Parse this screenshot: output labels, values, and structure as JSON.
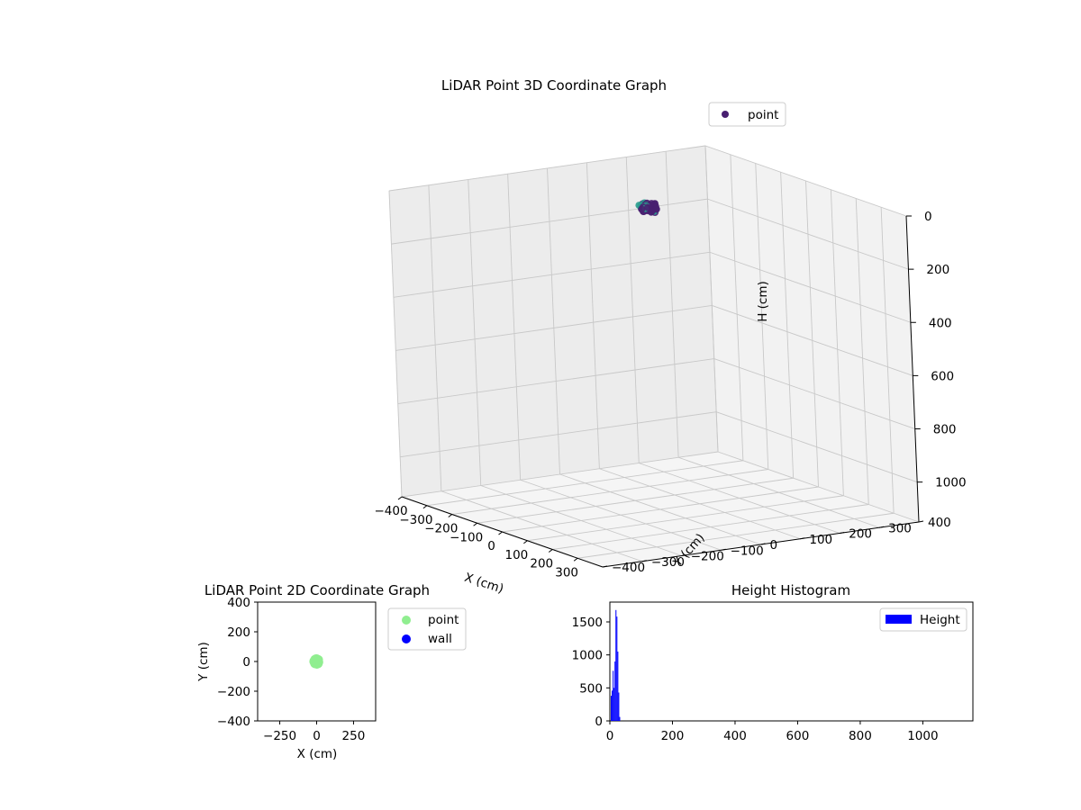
{
  "figure": {
    "background": "#ffffff"
  },
  "chart_data": [
    {
      "type": "scatter",
      "title": "LiDAR Point 3D Coordinate Graph",
      "xlabel": "X (cm)",
      "ylabel": "Y (cm)",
      "zlabel": "H (cm)",
      "xlim": [
        -400,
        400
      ],
      "ylim": [
        -400,
        400
      ],
      "zlim": [
        0,
        1150
      ],
      "z_inverted": true,
      "x_ticks": [
        -400,
        -300,
        -200,
        -100,
        0,
        100,
        200,
        300
      ],
      "y_ticks": [
        -400,
        -300,
        -200,
        -100,
        0,
        100,
        200,
        300,
        400
      ],
      "z_ticks": [
        0,
        200,
        400,
        600,
        800,
        1000
      ],
      "grid": true,
      "legend": {
        "placement": "top-right",
        "entries": [
          {
            "label": "point",
            "color": "#481f70"
          }
        ]
      },
      "series": [
        {
          "name": "point",
          "color": "#481f70",
          "edge_color": "#2a9d8f",
          "cluster": {
            "x_range": [
              -20,
              20
            ],
            "y_range": [
              -20,
              20
            ],
            "h_range": [
              0,
              30
            ]
          }
        }
      ]
    },
    {
      "type": "scatter",
      "title": "LiDAR Point 2D Coordinate Graph",
      "xlabel": "X (cm)",
      "ylabel": "Y (cm)",
      "xlim": [
        -400,
        400
      ],
      "ylim": [
        -400,
        400
      ],
      "x_ticks": [
        -250,
        0,
        250
      ],
      "y_ticks": [
        -400,
        -200,
        0,
        200,
        400
      ],
      "grid": false,
      "legend": {
        "placement": "outside-right",
        "entries": [
          {
            "label": "point",
            "color": "#90ee90"
          },
          {
            "label": "wall",
            "color": "#0000ff"
          }
        ]
      },
      "series": [
        {
          "name": "point",
          "color": "#90ee90",
          "cluster": {
            "x_range": [
              -20,
              20
            ],
            "y_range": [
              -20,
              20
            ]
          }
        },
        {
          "name": "wall",
          "color": "#0000ff",
          "points": []
        }
      ]
    },
    {
      "type": "bar",
      "title": "Height Histogram",
      "xlim": [
        0,
        1160
      ],
      "ylim": [
        0,
        1800
      ],
      "x_ticks": [
        0,
        200,
        400,
        600,
        800,
        1000
      ],
      "y_ticks": [
        0,
        500,
        1000,
        1500
      ],
      "grid": false,
      "legend": {
        "placement": "top-right",
        "entries": [
          {
            "label": "Height",
            "color": "#0000ff"
          }
        ]
      },
      "series": [
        {
          "name": "Height",
          "color": "#0000ff",
          "bins": [
            {
              "x0": 0,
              "x1": 3,
              "count": 0
            },
            {
              "x0": 3,
              "x1": 6,
              "count": 380
            },
            {
              "x0": 6,
              "x1": 9,
              "count": 460
            },
            {
              "x0": 9,
              "x1": 12,
              "count": 760
            },
            {
              "x0": 12,
              "x1": 15,
              "count": 500
            },
            {
              "x0": 15,
              "x1": 18,
              "count": 900
            },
            {
              "x0": 18,
              "x1": 21,
              "count": 1680
            },
            {
              "x0": 21,
              "x1": 24,
              "count": 1580
            },
            {
              "x0": 24,
              "x1": 27,
              "count": 1050
            },
            {
              "x0": 27,
              "x1": 30,
              "count": 430
            },
            {
              "x0": 30,
              "x1": 33,
              "count": 60
            }
          ]
        }
      ]
    }
  ]
}
